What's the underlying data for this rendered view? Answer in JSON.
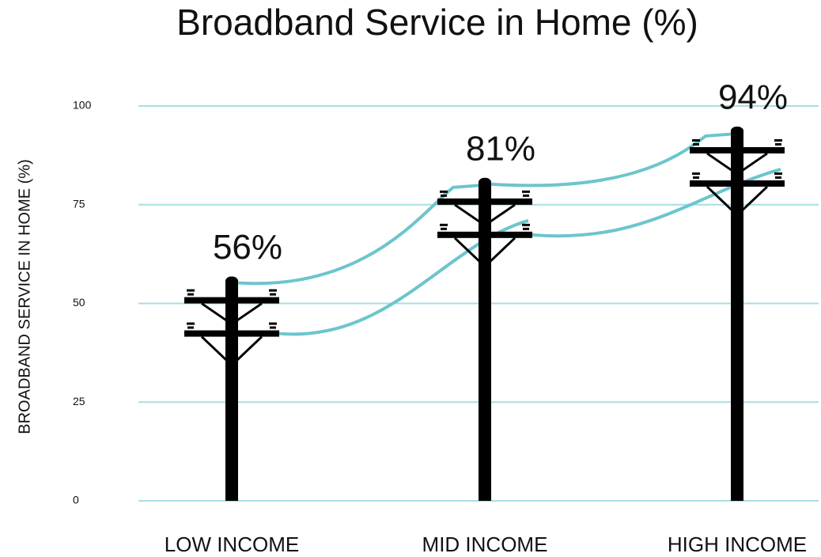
{
  "chart_data": {
    "type": "pole",
    "title": "Broadband Service in Home (%)",
    "y_label": "BROADBAND SERVICE IN HOME (%)",
    "categories": [
      "LOW INCOME",
      "MID INCOME",
      "HIGH INCOME"
    ],
    "values": [
      56,
      81,
      94
    ],
    "value_labels": [
      "56%",
      "81%",
      "94%"
    ],
    "color": "#000000",
    "grid_color": "#a8dde3",
    "wire_color": "#6cc5cc",
    "ylim": [
      0,
      100
    ],
    "yticks": [
      0,
      25,
      50,
      75,
      100
    ],
    "grid": true
  }
}
